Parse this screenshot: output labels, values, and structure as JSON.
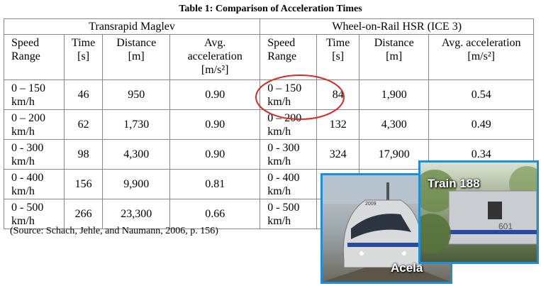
{
  "title": "Table 1: Comparison of Acceleration Times",
  "table": {
    "groups": [
      "Transrapid Maglev",
      "Wheel-on-Rail HSR (ICE 3)"
    ],
    "header": [
      "Speed Range",
      "Time [s]",
      "Distance [m]",
      "Avg. acceleration [m/s²]",
      "Speed Range",
      "Time [s]",
      "Distance [m]",
      "Avg. acceleration [m/s²]"
    ],
    "rows": [
      [
        "0 – 150 km/h",
        "46",
        "950",
        "0.90",
        "0 – 150 km/h",
        "84",
        "1,900",
        "0.54"
      ],
      [
        "0 – 200 km/h",
        "62",
        "1,730",
        "0.90",
        "0 – 200 km/h",
        "132",
        "4,300",
        "0.49"
      ],
      [
        "0 - 300 km/h",
        "98",
        "4,300",
        "0.90",
        "0 - 300 km/h",
        "324",
        "17,900",
        "0.34"
      ],
      [
        "0 - 400 km/h",
        "156",
        "9,900",
        "0.81",
        "0 - 400 km/h"
      ],
      [
        "0 - 500 km/h",
        "266",
        "23,300",
        "0.66",
        "0 - 500 km/h"
      ]
    ]
  },
  "source": "(Source: Schach, Jehle, and Naumann, 2006, p. 156)",
  "photos": [
    {
      "caption": "Acela",
      "number": "2009"
    },
    {
      "caption": "Train 188",
      "number": "601"
    }
  ]
}
